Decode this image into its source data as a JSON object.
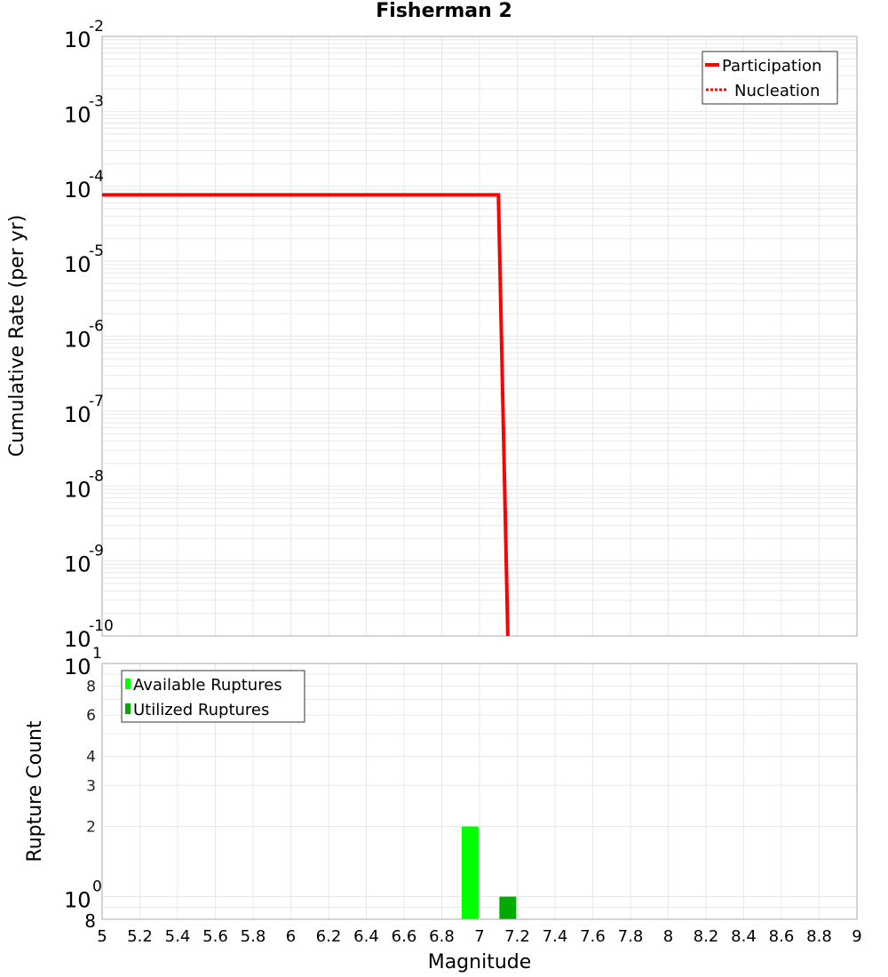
{
  "title": "Fisherman 2",
  "top_plot": {
    "ylabel": "Cumulative Rate (per yr)",
    "y_ticks": [
      {
        "base": "10",
        "exp": "-2",
        "value": 0.01
      },
      {
        "base": "10",
        "exp": "-3",
        "value": 0.001
      },
      {
        "base": "10",
        "exp": "-4",
        "value": 0.0001
      },
      {
        "base": "10",
        "exp": "-5",
        "value": 1e-05
      },
      {
        "base": "10",
        "exp": "-6",
        "value": 1e-06
      },
      {
        "base": "10",
        "exp": "-7",
        "value": 1e-07
      },
      {
        "base": "10",
        "exp": "-8",
        "value": 1e-08
      },
      {
        "base": "10",
        "exp": "-9",
        "value": 1e-09
      },
      {
        "base": "10",
        "exp": "-10",
        "value": 1e-10
      }
    ],
    "legend": [
      {
        "label": "Participation",
        "style": "solid",
        "color": "#ff0000"
      },
      {
        "label": "Nucleation",
        "style": "dotted",
        "color": "#ff0000"
      }
    ]
  },
  "bottom_plot": {
    "ylabel": "Rupture Count",
    "xlabel": "Magnitude",
    "y_ticks_major": [
      {
        "base": "10",
        "exp": "1",
        "value": 10
      },
      {
        "base": "10",
        "exp": "0",
        "value": 1
      }
    ],
    "y_ticks_minor": [
      "8",
      "6",
      "4",
      "3",
      "2",
      "8"
    ],
    "legend": [
      {
        "label": "Available Ruptures",
        "color": "#00ff00"
      },
      {
        "label": "Utilized Ruptures",
        "color": "#00aa00"
      }
    ]
  },
  "x_ticks": [
    "5",
    "5.2",
    "5.4",
    "5.6",
    "5.8",
    "6",
    "6.2",
    "6.4",
    "6.6",
    "6.8",
    "7",
    "7.2",
    "7.4",
    "7.6",
    "7.8",
    "8",
    "8.2",
    "8.4",
    "8.6",
    "8.8",
    "9"
  ],
  "chart_data": [
    {
      "type": "line",
      "title": "Fisherman 2",
      "xlabel": "Magnitude",
      "ylabel": "Cumulative Rate (per yr)",
      "yscale": "log",
      "xlim": [
        5,
        9
      ],
      "ylim": [
        1e-10,
        0.01
      ],
      "grid": true,
      "legend_position": "upper right",
      "series": [
        {
          "name": "Participation",
          "style": "solid",
          "color": "#ff0000",
          "x": [
            5.0,
            7.1,
            7.15
          ],
          "y": [
            7.7e-05,
            7.7e-05,
            1e-10
          ]
        },
        {
          "name": "Nucleation",
          "style": "dotted",
          "color": "#ff0000",
          "x": [
            5.0,
            7.1,
            7.15
          ],
          "y": [
            7.7e-05,
            7.7e-05,
            1e-10
          ]
        }
      ]
    },
    {
      "type": "bar",
      "xlabel": "Magnitude",
      "ylabel": "Rupture Count",
      "yscale": "log",
      "xlim": [
        5,
        9
      ],
      "ylim": [
        0.8,
        10
      ],
      "grid": true,
      "legend_position": "upper left",
      "series": [
        {
          "name": "Available Ruptures",
          "color": "#00ff00",
          "x": [
            6.95
          ],
          "values": [
            2
          ]
        },
        {
          "name": "Utilized Ruptures",
          "color": "#00aa00",
          "x": [
            7.15
          ],
          "values": [
            1
          ]
        }
      ]
    }
  ]
}
